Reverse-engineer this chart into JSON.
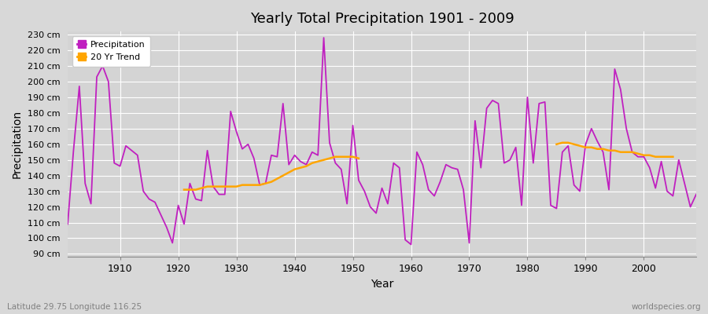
{
  "title": "Yearly Total Precipitation 1901 - 2009",
  "xlabel": "Year",
  "ylabel": "Precipitation",
  "subtitle": "Latitude 29.75 Longitude 116.25",
  "watermark": "worldspecies.org",
  "precipitation_color": "#C020C0",
  "trend_color": "#FFA500",
  "background_color": "#D8D8D8",
  "plot_bg_color": "#D4D4D4",
  "grid_color": "#FFFFFF",
  "ylim": [
    88,
    232
  ],
  "yticks": [
    90,
    100,
    110,
    120,
    130,
    140,
    150,
    160,
    170,
    180,
    190,
    200,
    210,
    220,
    230
  ],
  "xticks": [
    1910,
    1920,
    1930,
    1940,
    1950,
    1960,
    1970,
    1980,
    1990,
    2000
  ],
  "years": [
    1901,
    1902,
    1903,
    1904,
    1905,
    1906,
    1907,
    1908,
    1909,
    1910,
    1911,
    1912,
    1913,
    1914,
    1915,
    1916,
    1917,
    1918,
    1919,
    1920,
    1921,
    1922,
    1923,
    1924,
    1925,
    1926,
    1927,
    1928,
    1929,
    1930,
    1931,
    1932,
    1933,
    1934,
    1935,
    1936,
    1937,
    1938,
    1939,
    1940,
    1941,
    1942,
    1943,
    1944,
    1945,
    1946,
    1947,
    1948,
    1949,
    1950,
    1951,
    1952,
    1953,
    1954,
    1955,
    1956,
    1957,
    1958,
    1959,
    1960,
    1961,
    1962,
    1963,
    1964,
    1965,
    1966,
    1967,
    1968,
    1969,
    1970,
    1971,
    1972,
    1973,
    1974,
    1975,
    1976,
    1977,
    1978,
    1979,
    1980,
    1981,
    1982,
    1983,
    1984,
    1985,
    1986,
    1987,
    1988,
    1989,
    1990,
    1991,
    1992,
    1993,
    1994,
    1995,
    1996,
    1997,
    1998,
    1999,
    2000,
    2001,
    2002,
    2003,
    2004,
    2005,
    2006,
    2007,
    2008,
    2009
  ],
  "precipitation": [
    109,
    156,
    197,
    135,
    122,
    203,
    210,
    200,
    148,
    146,
    159,
    156,
    153,
    130,
    125,
    123,
    115,
    107,
    97,
    121,
    109,
    135,
    125,
    124,
    156,
    133,
    128,
    128,
    181,
    168,
    157,
    160,
    151,
    134,
    135,
    153,
    152,
    186,
    147,
    153,
    149,
    147,
    155,
    153,
    228,
    161,
    148,
    144,
    122,
    172,
    137,
    130,
    120,
    116,
    132,
    122,
    148,
    145,
    99,
    96,
    155,
    147,
    131,
    127,
    136,
    147,
    145,
    144,
    131,
    97,
    175,
    145,
    183,
    188,
    186,
    148,
    150,
    158,
    121,
    190,
    148,
    186,
    187,
    121,
    119,
    155,
    159,
    134,
    130,
    160,
    170,
    162,
    155,
    131,
    208,
    195,
    170,
    155,
    152,
    152,
    145,
    132,
    149,
    130,
    127,
    150,
    135,
    120,
    128
  ],
  "trend_segment1_years": [
    1921,
    1922,
    1923,
    1924,
    1925,
    1926,
    1927,
    1928,
    1929,
    1930,
    1931,
    1932,
    1933,
    1934,
    1935,
    1936,
    1937,
    1938,
    1939,
    1940,
    1941,
    1942,
    1943,
    1944,
    1945,
    1946,
    1947,
    1948,
    1949,
    1950,
    1951
  ],
  "trend_segment1_values": [
    131,
    131,
    131,
    132,
    133,
    133,
    133,
    133,
    133,
    133,
    134,
    134,
    134,
    134,
    135,
    136,
    138,
    140,
    142,
    144,
    145,
    146,
    148,
    149,
    150,
    151,
    152,
    152,
    152,
    152,
    151
  ],
  "trend_segment2_years": [
    1985,
    1986,
    1987,
    1988,
    1989,
    1990,
    1991,
    1992,
    1993,
    1994,
    1995,
    1996,
    1997,
    1998,
    1999,
    2000,
    2001,
    2002,
    2003,
    2004,
    2005
  ],
  "trend_segment2_values": [
    160,
    161,
    161,
    160,
    159,
    158,
    158,
    157,
    157,
    156,
    156,
    155,
    155,
    155,
    154,
    153,
    153,
    152,
    152,
    152,
    152
  ]
}
